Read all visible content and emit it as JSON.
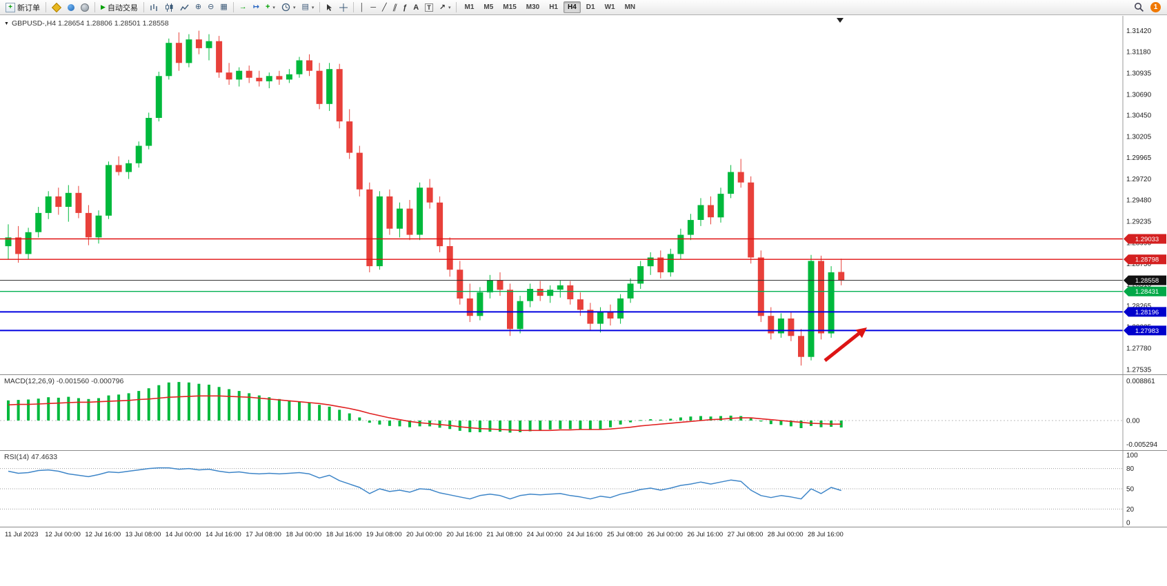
{
  "toolbar": {
    "new_order_label": "新订单",
    "autotrading_label": "自动交易",
    "timeframes": [
      "M1",
      "M5",
      "M15",
      "M30",
      "H1",
      "H4",
      "D1",
      "W1",
      "MN"
    ],
    "active_timeframe": "H4",
    "notification_count": "1"
  },
  "icons": {
    "new_order_plus": "+",
    "autotrading_play": "▶",
    "zoom_in": "⊕",
    "zoom_out": "⊖",
    "tile_windows": "▦",
    "auto_scroll": "→",
    "chart_shift": "↦",
    "indicators_plus": "+",
    "caret": "▾",
    "templates": "▤",
    "vline": "│",
    "hline": "─",
    "trendline": "╱",
    "channel": "∥",
    "fibonacci": "ƒ",
    "text": "A",
    "text_label": "T",
    "arrows": "↗",
    "collapse_triangle": "▼"
  },
  "chart": {
    "symbol_label": "GBPUSD-,H4 1.28654 1.28806 1.28501 1.28558",
    "current_price": "1.28558",
    "price_axis_labels": [
      "1.31420",
      "1.31180",
      "1.30935",
      "1.30690",
      "1.30450",
      "1.30205",
      "1.29965",
      "1.29720",
      "1.29480",
      "1.29235",
      "1.28990",
      "1.28750",
      "1.28510",
      "1.28265",
      "1.28025",
      "1.27780",
      "1.27535"
    ],
    "hlines": [
      {
        "price": 1.29033,
        "label": "1.29033",
        "color": "#e01010",
        "lw": 1.4,
        "badge": "#d42020"
      },
      {
        "price": 1.28798,
        "label": "1.28798",
        "color": "#e01010",
        "lw": 1.4,
        "badge": "#d42020"
      },
      {
        "price": 1.28558,
        "label": "1.28558",
        "color": "#2a2a2a",
        "lw": 1,
        "badge": "#111111"
      },
      {
        "price": 1.28431,
        "label": "1.28431",
        "color": "#00b050",
        "lw": 1.4,
        "badge": "#00a847"
      },
      {
        "price": 1.28196,
        "label": "1.28196",
        "color": "#0000e0",
        "lw": 2,
        "badge": "#0000cc"
      },
      {
        "price": 1.27983,
        "label": "1.27983",
        "color": "#0000e0",
        "lw": 2,
        "badge": "#0000cc"
      }
    ],
    "arrow_annotation": {
      "color": "#dd1414",
      "direction": "up-right"
    }
  },
  "chart_data": [
    {
      "type": "candlestick",
      "title": "GBPUSD- H4",
      "ylim": [
        1.2748,
        1.3159
      ],
      "up_color": "#00b93c",
      "down_color": "#e8403a",
      "x_labels": [
        "11 Jul 2023",
        "12 Jul 00:00",
        "12 Jul 16:00",
        "13 Jul 08:00",
        "14 Jul 00:00",
        "14 Jul 16:00",
        "17 Jul 08:00",
        "18 Jul 00:00",
        "18 Jul 16:00",
        "19 Jul 08:00",
        "20 Jul 00:00",
        "20 Jul 16:00",
        "21 Jul 08:00",
        "24 Jul 00:00",
        "24 Jul 16:00",
        "25 Jul 08:00",
        "26 Jul 00:00",
        "26 Jul 16:00",
        "27 Jul 08:00",
        "28 Jul 00:00",
        "28 Jul 16:00"
      ],
      "y_axis_labels": [
        "1.31420",
        "1.31180",
        "1.30935",
        "1.30690",
        "1.30450",
        "1.30205",
        "1.29965",
        "1.29720",
        "1.29480",
        "1.29235",
        "1.28990",
        "1.28750",
        "1.28510",
        "1.28265",
        "1.28025",
        "1.27780",
        "1.27535"
      ],
      "hline_levels": [
        1.29033,
        1.28798,
        1.28558,
        1.28431,
        1.28196,
        1.27983
      ],
      "candles": [
        [
          1.2895,
          1.292,
          1.288,
          1.2905
        ],
        [
          1.2905,
          1.2918,
          1.2876,
          1.2886
        ],
        [
          1.2886,
          1.2916,
          1.288,
          1.2911
        ],
        [
          1.2911,
          1.294,
          1.2905,
          1.2933
        ],
        [
          1.2933,
          1.2958,
          1.2926,
          1.2952
        ],
        [
          1.2952,
          1.2962,
          1.2931,
          1.294
        ],
        [
          1.294,
          1.2965,
          1.2923,
          1.2956
        ],
        [
          1.2956,
          1.2964,
          1.2927,
          1.2933
        ],
        [
          1.2933,
          1.2942,
          1.2896,
          1.2905
        ],
        [
          1.2905,
          1.2936,
          1.2898,
          1.293
        ],
        [
          1.293,
          1.2992,
          1.2926,
          1.2988
        ],
        [
          1.2988,
          1.2998,
          1.2976,
          1.298
        ],
        [
          1.298,
          1.2994,
          1.2972,
          1.299
        ],
        [
          1.299,
          1.3015,
          1.2985,
          1.301
        ],
        [
          1.301,
          1.3048,
          1.3006,
          1.3042
        ],
        [
          1.3042,
          1.3095,
          1.3038,
          1.309
        ],
        [
          1.309,
          1.3133,
          1.3086,
          1.3128
        ],
        [
          1.3128,
          1.314,
          1.3096,
          1.3105
        ],
        [
          1.3105,
          1.3138,
          1.31,
          1.3132
        ],
        [
          1.3132,
          1.3142,
          1.3115,
          1.3122
        ],
        [
          1.3122,
          1.3138,
          1.3108,
          1.313
        ],
        [
          1.313,
          1.3136,
          1.3088,
          1.3094
        ],
        [
          1.3094,
          1.3105,
          1.308,
          1.3086
        ],
        [
          1.3086,
          1.31,
          1.3078,
          1.3096
        ],
        [
          1.3096,
          1.3102,
          1.3082,
          1.3088
        ],
        [
          1.3088,
          1.3096,
          1.3078,
          1.3084
        ],
        [
          1.3084,
          1.3094,
          1.3076,
          1.309
        ],
        [
          1.309,
          1.3096,
          1.308,
          1.3086
        ],
        [
          1.3086,
          1.3098,
          1.3082,
          1.3092
        ],
        [
          1.3092,
          1.3112,
          1.3088,
          1.3108
        ],
        [
          1.3108,
          1.3115,
          1.309,
          1.3096
        ],
        [
          1.3096,
          1.3105,
          1.3052,
          1.3058
        ],
        [
          1.3058,
          1.3105,
          1.305,
          1.3098
        ],
        [
          1.3098,
          1.3104,
          1.303,
          1.3038
        ],
        [
          1.3038,
          1.3052,
          1.2995,
          1.3002
        ],
        [
          1.3002,
          1.301,
          1.2952,
          1.296
        ],
        [
          1.296,
          1.2968,
          1.2865,
          1.2872
        ],
        [
          1.2872,
          1.2958,
          1.2868,
          1.2952
        ],
        [
          1.2952,
          1.296,
          1.2908,
          1.2915
        ],
        [
          1.2915,
          1.2945,
          1.2905,
          1.2938
        ],
        [
          1.2938,
          1.2948,
          1.2902,
          1.2908
        ],
        [
          1.2908,
          1.2968,
          1.2902,
          1.2962
        ],
        [
          1.2962,
          1.2972,
          1.2938,
          1.2945
        ],
        [
          1.2945,
          1.2952,
          1.2888,
          1.2895
        ],
        [
          1.2895,
          1.2905,
          1.286,
          1.2868
        ],
        [
          1.2868,
          1.2878,
          1.2828,
          1.2835
        ],
        [
          1.2835,
          1.2852,
          1.2808,
          1.2815
        ],
        [
          1.2815,
          1.2848,
          1.281,
          1.2842
        ],
        [
          1.2842,
          1.2862,
          1.2835,
          1.2856
        ],
        [
          1.2856,
          1.2865,
          1.2838,
          1.2845
        ],
        [
          1.2845,
          1.2852,
          1.2792,
          1.28
        ],
        [
          1.28,
          1.2838,
          1.2795,
          1.2832
        ],
        [
          1.2832,
          1.2852,
          1.2825,
          1.2846
        ],
        [
          1.2846,
          1.2855,
          1.2832,
          1.2838
        ],
        [
          1.2838,
          1.285,
          1.283,
          1.2845
        ],
        [
          1.2845,
          1.2856,
          1.2836,
          1.285
        ],
        [
          1.285,
          1.2855,
          1.2828,
          1.2834
        ],
        [
          1.2834,
          1.2842,
          1.2815,
          1.2822
        ],
        [
          1.2822,
          1.283,
          1.2798,
          1.2806
        ],
        [
          1.2806,
          1.2825,
          1.2796,
          1.282
        ],
        [
          1.282,
          1.2828,
          1.2804,
          1.2812
        ],
        [
          1.2812,
          1.284,
          1.2806,
          1.2835
        ],
        [
          1.2835,
          1.2858,
          1.283,
          1.2852
        ],
        [
          1.2852,
          1.2878,
          1.2846,
          1.2872
        ],
        [
          1.2872,
          1.2888,
          1.2862,
          1.2882
        ],
        [
          1.2882,
          1.289,
          1.2858,
          1.2865
        ],
        [
          1.2865,
          1.2892,
          1.286,
          1.2886
        ],
        [
          1.2886,
          1.2915,
          1.288,
          1.2908
        ],
        [
          1.2908,
          1.2932,
          1.2902,
          1.2925
        ],
        [
          1.2925,
          1.295,
          1.2918,
          1.2942
        ],
        [
          1.2942,
          1.2952,
          1.292,
          1.2928
        ],
        [
          1.2928,
          1.2962,
          1.2922,
          1.2955
        ],
        [
          1.2955,
          1.2988,
          1.295,
          1.298
        ],
        [
          1.298,
          1.2995,
          1.2962,
          1.2968
        ],
        [
          1.2968,
          1.2975,
          1.2875,
          1.2882
        ],
        [
          1.2882,
          1.289,
          1.2808,
          1.2815
        ],
        [
          1.2815,
          1.2825,
          1.2788,
          1.2795
        ],
        [
          1.2795,
          1.2818,
          1.279,
          1.2812
        ],
        [
          1.2812,
          1.282,
          1.2786,
          1.2792
        ],
        [
          1.2792,
          1.28,
          1.2758,
          1.2768
        ],
        [
          1.2768,
          1.2885,
          1.2764,
          1.2878
        ],
        [
          1.2878,
          1.2884,
          1.2788,
          1.2795
        ],
        [
          1.2795,
          1.2872,
          1.279,
          1.2865
        ],
        [
          1.28654,
          1.28806,
          1.28501,
          1.28558
        ]
      ]
    },
    {
      "type": "bar",
      "name": "MACD(12,26,9)",
      "label_text": "MACD(12,26,9) -0.001560 -0.000796",
      "ylim": [
        -0.00653,
        0.01009
      ],
      "axis_labels": [
        "0.008861",
        "0.00",
        "-0.005294"
      ],
      "histogram_color": "#00b93c",
      "signal_color": "#e02020",
      "histogram": [
        0.0045,
        0.0046,
        0.0047,
        0.0049,
        0.0052,
        0.0051,
        0.0053,
        0.005,
        0.0048,
        0.005,
        0.0056,
        0.0058,
        0.0061,
        0.0066,
        0.0072,
        0.0079,
        0.0085,
        0.0086,
        0.0085,
        0.0082,
        0.008,
        0.0075,
        0.007,
        0.0066,
        0.0061,
        0.0056,
        0.0052,
        0.0048,
        0.0045,
        0.0043,
        0.004,
        0.0035,
        0.0031,
        0.0024,
        0.0016,
        0.0007,
        -0.0005,
        -0.0009,
        -0.0012,
        -0.0013,
        -0.0015,
        -0.0013,
        -0.0013,
        -0.0016,
        -0.0019,
        -0.0023,
        -0.0026,
        -0.0026,
        -0.0025,
        -0.0025,
        -0.0027,
        -0.0026,
        -0.0024,
        -0.0022,
        -0.002,
        -0.0019,
        -0.0019,
        -0.002,
        -0.0021,
        -0.0019,
        -0.0015,
        -0.0009,
        -0.0004,
        0.0001,
        0.0003,
        0.0002,
        0.0004,
        0.0007,
        0.0009,
        0.001,
        0.0009,
        0.001,
        0.0011,
        0.001,
        0.0005,
        -0.0002,
        -0.0008,
        -0.001,
        -0.0013,
        -0.0017,
        -0.0012,
        -0.0015,
        -0.0014,
        -0.00156
      ],
      "signal": [
        0.0035,
        0.0036,
        0.0036,
        0.0037,
        0.0038,
        0.0039,
        0.004,
        0.0041,
        0.0041,
        0.0042,
        0.0043,
        0.0044,
        0.0045,
        0.0047,
        0.0048,
        0.005,
        0.0052,
        0.0053,
        0.0054,
        0.0055,
        0.0055,
        0.0055,
        0.0054,
        0.0053,
        0.0052,
        0.005,
        0.0048,
        0.0046,
        0.0044,
        0.0042,
        0.004,
        0.0038,
        0.0035,
        0.0031,
        0.0027,
        0.0022,
        0.0016,
        0.0011,
        0.0006,
        0.0002,
        -0.0002,
        -0.0005,
        -0.0007,
        -0.0009,
        -0.0011,
        -0.0014,
        -0.0016,
        -0.0018,
        -0.0019,
        -0.002,
        -0.0021,
        -0.0022,
        -0.0022,
        -0.0022,
        -0.0022,
        -0.0021,
        -0.0021,
        -0.002,
        -0.002,
        -0.002,
        -0.0019,
        -0.0017,
        -0.0015,
        -0.0012,
        -0.001,
        -0.0008,
        -0.0006,
        -0.0004,
        -0.0002,
        0.0,
        0.0002,
        0.0003,
        0.0005,
        0.0006,
        0.0006,
        0.0004,
        0.0002,
        0.0,
        -0.0002,
        -0.0004,
        -0.0006,
        -0.0007,
        -0.0008,
        -0.000796
      ]
    },
    {
      "type": "line",
      "name": "RSI(14)",
      "label_text": "RSI(14) 47.4633",
      "ylim": [
        0,
        100
      ],
      "levels": [
        80,
        50,
        20
      ],
      "axis_labels": [
        "100",
        "80",
        "50",
        "20",
        "0"
      ],
      "line_color": "#3d85c8",
      "values": [
        76,
        73,
        74,
        77,
        78,
        76,
        72,
        70,
        68,
        71,
        75,
        74,
        76,
        78,
        80,
        81,
        81,
        79,
        80,
        78,
        79,
        76,
        74,
        75,
        73,
        72,
        73,
        72,
        73,
        74,
        72,
        66,
        70,
        62,
        57,
        52,
        43,
        50,
        46,
        48,
        45,
        50,
        49,
        44,
        41,
        38,
        35,
        40,
        42,
        40,
        35,
        40,
        42,
        41,
        42,
        43,
        40,
        38,
        35,
        39,
        37,
        42,
        45,
        49,
        51,
        48,
        51,
        55,
        57,
        60,
        57,
        60,
        63,
        61,
        48,
        40,
        37,
        40,
        38,
        35,
        50,
        43,
        52,
        47.4633
      ]
    }
  ]
}
